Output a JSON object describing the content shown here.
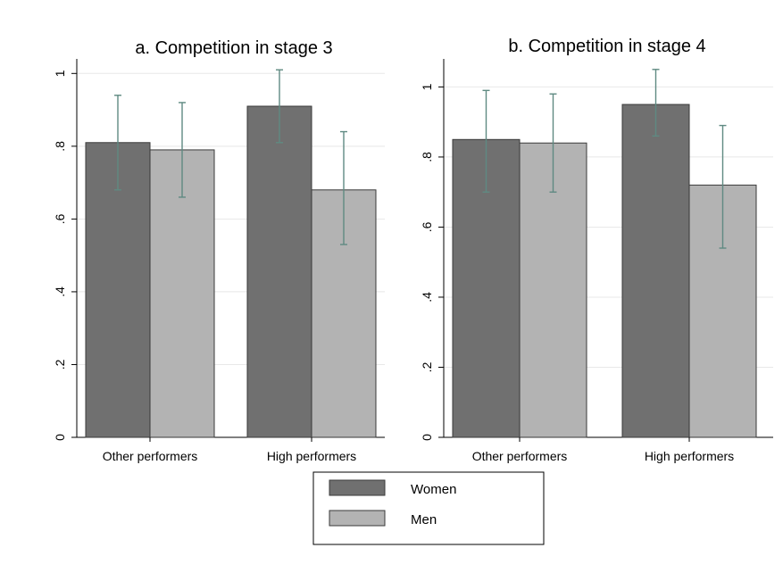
{
  "colors": {
    "women": "#707070",
    "men": "#b3b3b3",
    "bar_stroke": "#3a3a3a",
    "error_bar": "#5f8a82",
    "grid": "#e8e8e8",
    "axis": "#000000"
  },
  "chart_data": [
    {
      "type": "bar",
      "title": "a. Competition in stage 3",
      "categories": [
        "Other performers",
        "High performers"
      ],
      "series": [
        {
          "name": "Women",
          "values": [
            0.81,
            0.91
          ],
          "ci_low": [
            0.68,
            0.81
          ],
          "ci_high": [
            0.94,
            1.01
          ]
        },
        {
          "name": "Men",
          "values": [
            0.79,
            0.68
          ],
          "ci_low": [
            0.66,
            0.53
          ],
          "ci_high": [
            0.92,
            0.84
          ]
        }
      ],
      "ylim": [
        0,
        1.04
      ],
      "yticks": [
        0,
        0.2,
        0.4,
        0.6,
        0.8,
        1
      ],
      "ytick_labels": [
        "0",
        ".2",
        ".4",
        ".6",
        ".8",
        "1"
      ],
      "grid": true
    },
    {
      "type": "bar",
      "title": "b. Competition in stage 4",
      "categories": [
        "Other performers",
        "High performers"
      ],
      "series": [
        {
          "name": "Women",
          "values": [
            0.85,
            0.95
          ],
          "ci_low": [
            0.7,
            0.86
          ],
          "ci_high": [
            0.99,
            1.05
          ]
        },
        {
          "name": "Men",
          "values": [
            0.84,
            0.72
          ],
          "ci_low": [
            0.7,
            0.54
          ],
          "ci_high": [
            0.98,
            0.89
          ]
        }
      ],
      "ylim": [
        0,
        1.08
      ],
      "yticks": [
        0,
        0.2,
        0.4,
        0.6,
        0.8,
        1
      ],
      "ytick_labels": [
        "0",
        ".2",
        ".4",
        ".6",
        ".8",
        "1"
      ],
      "grid": true
    }
  ],
  "legend": {
    "placement": "bottom-center",
    "items": [
      {
        "label": "Women",
        "color_key": "women"
      },
      {
        "label": "Men",
        "color_key": "men"
      }
    ]
  }
}
